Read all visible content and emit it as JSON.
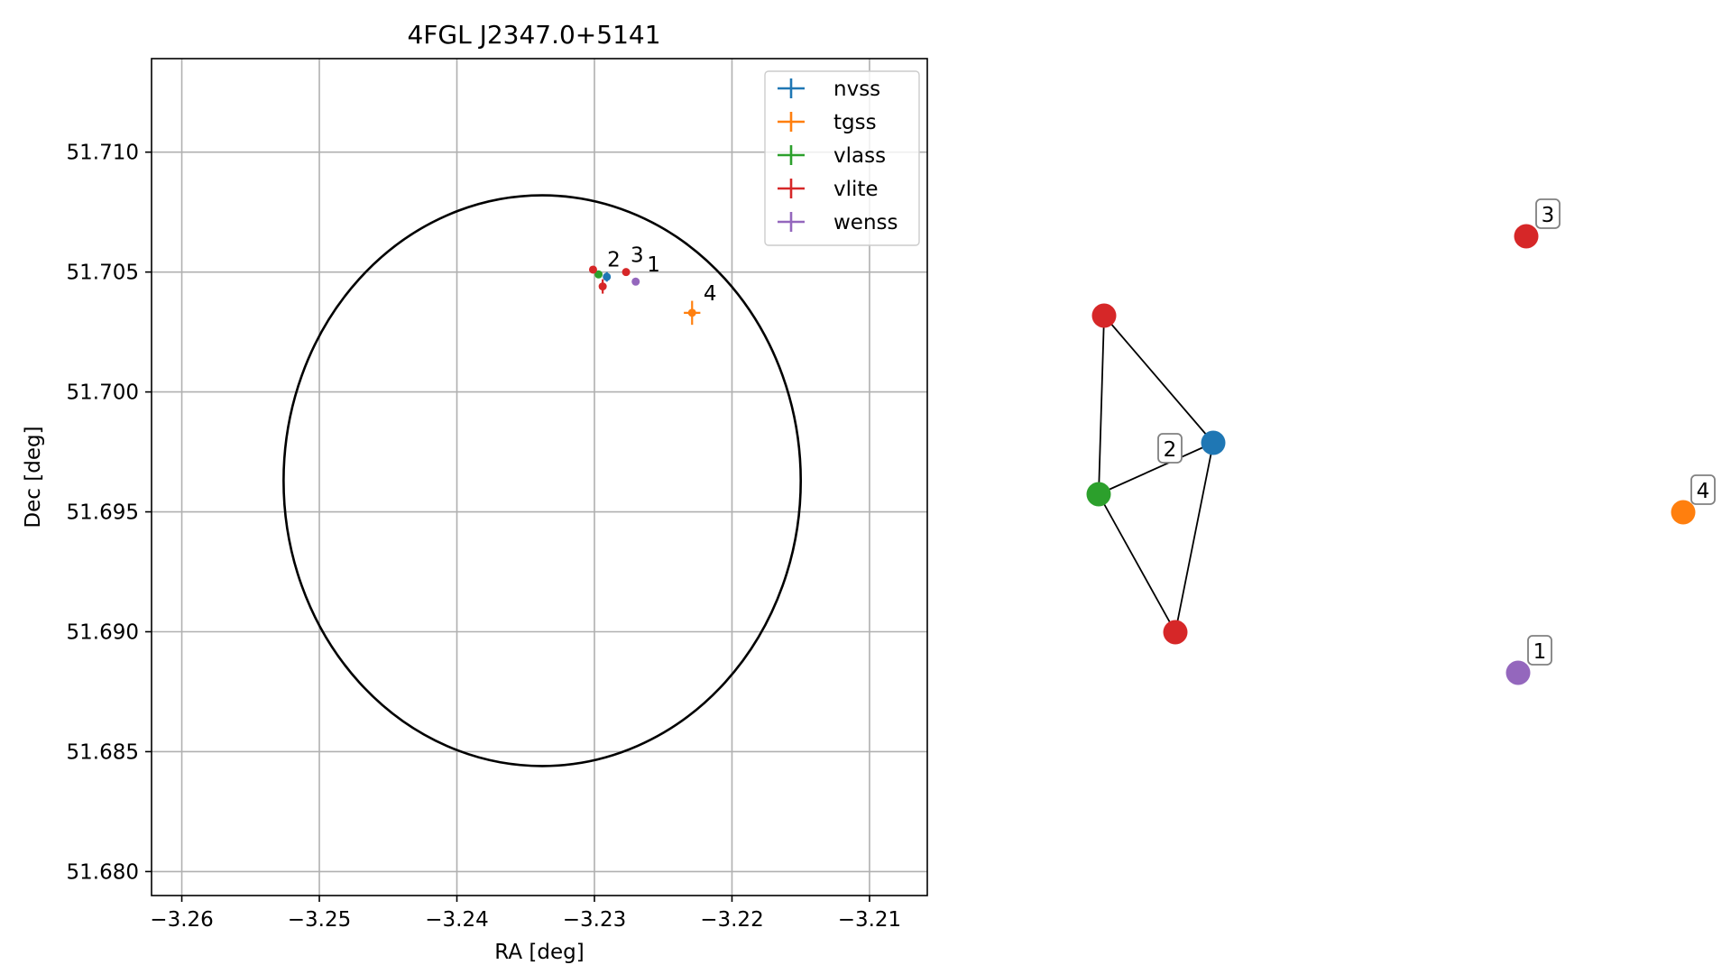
{
  "chart_data": [
    {
      "type": "scatter",
      "title": "4FGL J2347.0+5141",
      "xlabel": "RA [deg]",
      "ylabel": "Dec [deg]",
      "xlim": [
        -3.2622,
        -3.2058
      ],
      "ylim": [
        51.679,
        51.7139
      ],
      "xticks": [
        -3.26,
        -3.25,
        -3.24,
        -3.23,
        -3.22,
        -3.21
      ],
      "xtick_labels": [
        "−3.26",
        "−3.25",
        "−3.24",
        "−3.23",
        "−3.22",
        "−3.21"
      ],
      "yticks": [
        51.68,
        51.685,
        51.69,
        51.695,
        51.7,
        51.705,
        51.71
      ],
      "ytick_labels": [
        "51.680",
        "51.685",
        "51.690",
        "51.695",
        "51.700",
        "51.705",
        "51.710"
      ],
      "grid": true,
      "legend_placement": "upper-right",
      "circle": {
        "center": [
          -3.2338,
          51.6963
        ],
        "radius_ra": 0.0188,
        "radius_dec": 0.0119,
        "color": "#000000"
      },
      "series": [
        {
          "name": "nvss",
          "color": "#1f77b4",
          "points": [
            {
              "x": -3.2291,
              "y": 51.7048,
              "xerr": 0.0002,
              "yerr": 0.0002
            }
          ]
        },
        {
          "name": "tgss",
          "color": "#ff7f0e",
          "points": [
            {
              "x": -3.2229,
              "y": 51.7033,
              "xerr": 0.0006,
              "yerr": 0.0005
            }
          ]
        },
        {
          "name": "vlass",
          "color": "#2ca02c",
          "points": [
            {
              "x": -3.2297,
              "y": 51.7049,
              "xerr": 0.0001,
              "yerr": 0.0001
            }
          ]
        },
        {
          "name": "vlite",
          "color": "#d62728",
          "points": [
            {
              "x": -3.2301,
              "y": 51.7051,
              "xerr": 0.0001,
              "yerr": 0.0001
            },
            {
              "x": -3.2277,
              "y": 51.705,
              "xerr": 0.0001,
              "yerr": 0.0001
            },
            {
              "x": -3.2294,
              "y": 51.7044,
              "xerr": 0.0001,
              "yerr": 0.0003
            }
          ]
        },
        {
          "name": "wenss",
          "color": "#9467bd",
          "points": [
            {
              "x": -3.227,
              "y": 51.7046,
              "xerr": 0.0001,
              "yerr": 0.0001
            }
          ]
        }
      ],
      "annotations": [
        {
          "text": "2",
          "x": -3.2296,
          "y": 51.705
        },
        {
          "text": "3",
          "x": -3.2279,
          "y": 51.7052
        },
        {
          "text": "1",
          "x": -3.2267,
          "y": 51.7048
        },
        {
          "text": "4",
          "x": -3.2226,
          "y": 51.7036
        }
      ]
    },
    {
      "type": "network",
      "nodes": [
        {
          "id": "vlite-a",
          "color": "#d62728",
          "label": ""
        },
        {
          "id": "nvss",
          "color": "#1f77b4",
          "label": ""
        },
        {
          "id": "vlass",
          "color": "#2ca02c",
          "label": ""
        },
        {
          "id": "vlite-b",
          "color": "#d62728",
          "label": ""
        },
        {
          "id": "vlite-c",
          "color": "#d62728",
          "label": "3"
        },
        {
          "id": "tgss",
          "color": "#ff7f0e",
          "label": "4"
        },
        {
          "id": "wenss",
          "color": "#9467bd",
          "label": "1"
        }
      ],
      "edges": [
        [
          "vlite-a",
          "nvss"
        ],
        [
          "vlite-a",
          "vlass"
        ],
        [
          "nvss",
          "vlass"
        ],
        [
          "nvss",
          "vlite-b"
        ],
        [
          "vlass",
          "vlite-b"
        ]
      ],
      "group_labels": [
        {
          "text": "2"
        }
      ]
    }
  ]
}
